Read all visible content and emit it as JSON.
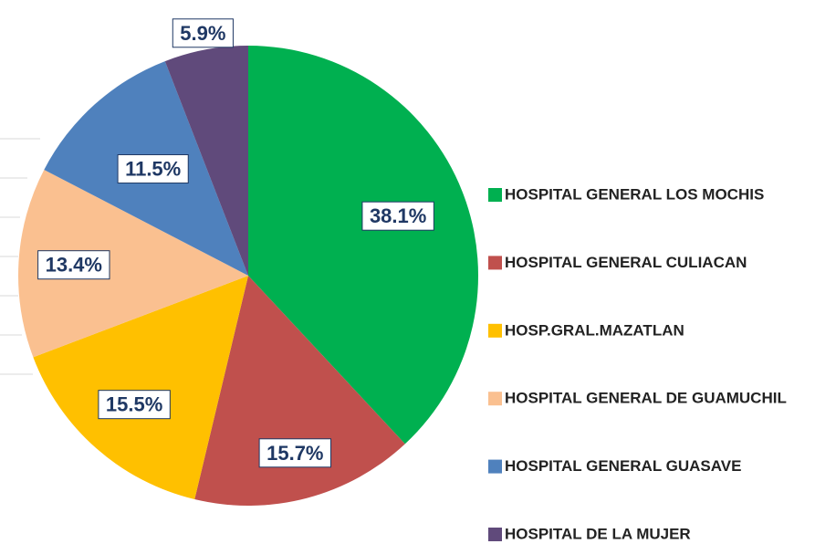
{
  "chart_data": {
    "type": "pie",
    "categories": [
      "HOSPITAL GENERAL LOS MOCHIS",
      "HOSPITAL GENERAL CULIACAN",
      "HOSP.GRAL.MAZATLAN",
      "HOSPITAL GENERAL DE GUAMUCHIL",
      "HOSPITAL GENERAL GUASAVE",
      "HOSPITAL DE LA MUJER"
    ],
    "values": [
      38.1,
      15.7,
      15.5,
      13.4,
      11.5,
      5.9
    ],
    "value_labels": [
      "38.1%",
      "15.7%",
      "15.5%",
      "13.4%",
      "11.5%",
      "5.9%"
    ],
    "colors": [
      "#00b050",
      "#c0504d",
      "#ffc000",
      "#fac090",
      "#4f81bd",
      "#604a7b"
    ],
    "legend": "right"
  }
}
